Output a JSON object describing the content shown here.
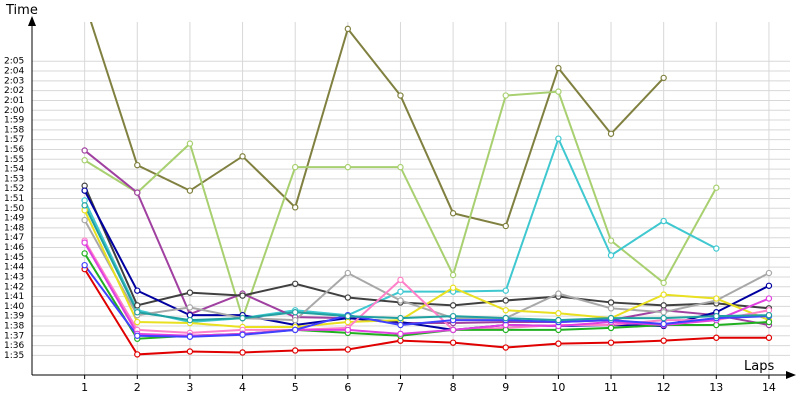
{
  "chart_data": {
    "type": "line",
    "x_label": "Laps",
    "y_label": "Time",
    "x": [
      1,
      2,
      3,
      4,
      5,
      6,
      7,
      8,
      9,
      10,
      11,
      12,
      13,
      14
    ],
    "xlim": [
      0,
      14.4
    ],
    "xticks": [
      1,
      2,
      3,
      4,
      5,
      6,
      7,
      8,
      9,
      10,
      11,
      12,
      13,
      14
    ],
    "ylim": [
      93,
      129
    ],
    "yticks": [
      {
        "value": 95,
        "label": "1:35"
      },
      {
        "value": 96,
        "label": "1:36"
      },
      {
        "value": 97,
        "label": "1:37"
      },
      {
        "value": 98,
        "label": "1:38"
      },
      {
        "value": 99,
        "label": "1:39"
      },
      {
        "value": 100,
        "label": "1:40"
      },
      {
        "value": 101,
        "label": "1:41"
      },
      {
        "value": 102,
        "label": "1:42"
      },
      {
        "value": 103,
        "label": "1:43"
      },
      {
        "value": 104,
        "label": "1:44"
      },
      {
        "value": 105,
        "label": "1:45"
      },
      {
        "value": 106,
        "label": "1:46"
      },
      {
        "value": 107,
        "label": "1:47"
      },
      {
        "value": 108,
        "label": "1:48"
      },
      {
        "value": 109,
        "label": "1:49"
      },
      {
        "value": 110,
        "label": "1:50"
      },
      {
        "value": 111,
        "label": "1:51"
      },
      {
        "value": 112,
        "label": "1:52"
      },
      {
        "value": 113,
        "label": "1:53"
      },
      {
        "value": 114,
        "label": "1:54"
      },
      {
        "value": 115,
        "label": "1:55"
      },
      {
        "value": 116,
        "label": "1:56"
      },
      {
        "value": 117,
        "label": "1:57"
      },
      {
        "value": 118,
        "label": "1:58"
      },
      {
        "value": 119,
        "label": "1:59"
      },
      {
        "value": 120,
        "label": "2:00"
      },
      {
        "value": 121,
        "label": "2:01"
      },
      {
        "value": 122,
        "label": "2:02"
      },
      {
        "value": 123,
        "label": "2:03"
      },
      {
        "value": 124,
        "label": "2:04"
      },
      {
        "value": 125,
        "label": "2:05"
      }
    ],
    "grid": true,
    "series": [
      {
        "color": "#e00000",
        "values": [
          103.8,
          95.1,
          95.4,
          95.3,
          95.5,
          95.6,
          96.5,
          96.3,
          95.8,
          96.2,
          96.3,
          96.5,
          96.8,
          96.8
        ]
      },
      {
        "color": "#808040",
        "values": [
          131,
          114.4,
          111.8,
          115.3,
          110.1,
          128.3,
          121.5,
          109.5,
          108.2,
          124.3,
          117.6,
          123.3,
          null,
          null
        ]
      },
      {
        "color": "#a8d070",
        "values": [
          114.9,
          111.6,
          116.6,
          98.8,
          114.2,
          114.2,
          114.2,
          103.2,
          121.5,
          121.9,
          106.7,
          102.4,
          112.1,
          null
        ]
      },
      {
        "color": "#40c8d0",
        "values": [
          110.8,
          99.6,
          98.4,
          98.8,
          99.6,
          99.1,
          101.5,
          101.5,
          101.6,
          117.1,
          105.2,
          108.7,
          105.9,
          null
        ]
      },
      {
        "color": "#a040a0",
        "values": [
          115.9,
          111.6,
          99.2,
          101.3,
          98.9,
          98.8,
          98.3,
          98.3,
          98.4,
          98.4,
          98.6,
          99.6,
          99.1,
          98.1
        ]
      },
      {
        "color": "#404040",
        "values": [
          112.3,
          100.1,
          101.4,
          101.1,
          102.3,
          100.9,
          100.4,
          100.1,
          100.6,
          101.0,
          100.4,
          100.1,
          100.3,
          99.8
        ]
      },
      {
        "color": "#0000a0",
        "values": [
          111.8,
          101.6,
          99.1,
          99.1,
          98.1,
          98.8,
          98.4,
          97.6,
          98.1,
          98.0,
          98.1,
          98.0,
          99.4,
          102.1
        ]
      },
      {
        "color": "#a8a8a8",
        "values": [
          108.8,
          99.1,
          99.9,
          98.8,
          98.6,
          103.4,
          100.6,
          98.8,
          98.8,
          101.3,
          99.8,
          99.4,
          100.6,
          103.4
        ]
      },
      {
        "color": "#e8e020",
        "values": [
          109.8,
          98.4,
          98.3,
          97.9,
          97.9,
          98.4,
          98.6,
          101.9,
          99.6,
          99.3,
          98.8,
          101.2,
          100.8,
          98.6
        ]
      },
      {
        "color": "#ff80c8",
        "values": [
          106.7,
          97.6,
          97.3,
          97.6,
          97.6,
          97.8,
          102.7,
          97.6,
          97.8,
          98.1,
          98.1,
          98.6,
          98.6,
          99.6
        ]
      },
      {
        "color": "#20b020",
        "values": [
          105.4,
          96.7,
          97.0,
          97.2,
          97.6,
          97.3,
          97.0,
          97.6,
          97.6,
          97.6,
          97.8,
          98.1,
          98.1,
          98.4
        ]
      },
      {
        "color": "#e040e0",
        "values": [
          106.5,
          97.2,
          97.0,
          97.2,
          97.6,
          97.6,
          97.2,
          97.6,
          98.1,
          98.0,
          98.4,
          98.1,
          98.6,
          100.8
        ]
      },
      {
        "color": "#4040ff",
        "values": [
          104.2,
          97.0,
          96.9,
          97.1,
          97.6,
          99.1,
          98.1,
          98.6,
          98.6,
          98.4,
          98.6,
          98.2,
          98.8,
          99.0
        ]
      },
      {
        "color": "#20a0a0",
        "values": [
          110.3,
          99.4,
          98.6,
          98.8,
          99.4,
          99.0,
          98.8,
          99.0,
          98.8,
          98.6,
          98.8,
          98.8,
          99.0,
          99.1
        ]
      }
    ]
  }
}
